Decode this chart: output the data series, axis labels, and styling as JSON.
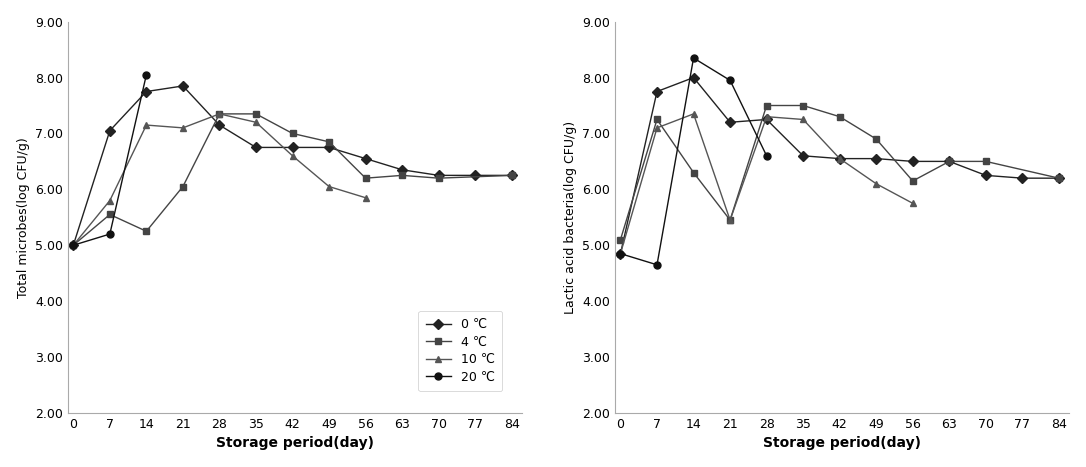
{
  "x_ticks": [
    0,
    7,
    14,
    21,
    28,
    35,
    42,
    49,
    56,
    63,
    70,
    77,
    84
  ],
  "ylim": [
    2.0,
    9.0
  ],
  "yticks": [
    2.0,
    3.0,
    4.0,
    5.0,
    6.0,
    7.0,
    8.0,
    9.0
  ],
  "xlabel": "Storage period(day)",
  "ylabel_left": "Total microbes(log CFU/g)",
  "ylabel_right": "Lactic acid bacteria(log CFU/g)",
  "left_series": {
    "0C": {
      "x": [
        0,
        7,
        14,
        21,
        28,
        35,
        42,
        49,
        56,
        63,
        70,
        77,
        84
      ],
      "y": [
        5.0,
        7.05,
        7.75,
        7.85,
        7.15,
        6.75,
        6.75,
        6.75,
        6.55,
        6.35,
        6.25,
        6.25,
        6.25
      ],
      "marker": "D",
      "color": "#222222"
    },
    "4C": {
      "x": [
        0,
        7,
        14,
        21,
        28,
        35,
        42,
        49,
        56,
        63,
        70,
        84
      ],
      "y": [
        5.0,
        5.55,
        5.25,
        6.05,
        7.35,
        7.35,
        7.0,
        6.85,
        6.2,
        6.25,
        6.2,
        6.25
      ],
      "marker": "s",
      "color": "#444444"
    },
    "10C": {
      "x": [
        0,
        7,
        14,
        21,
        28,
        35,
        42,
        49,
        56
      ],
      "y": [
        5.0,
        5.8,
        7.15,
        7.1,
        7.35,
        7.2,
        6.6,
        6.05,
        5.85
      ],
      "marker": "^",
      "color": "#555555"
    },
    "20C": {
      "x": [
        0,
        7,
        14
      ],
      "y": [
        5.0,
        5.2,
        8.05
      ],
      "marker": "o",
      "color": "#111111"
    }
  },
  "right_series": {
    "0C": {
      "x": [
        0,
        7,
        14,
        21,
        28,
        35,
        42,
        49,
        56,
        63,
        70,
        77,
        84
      ],
      "y": [
        4.85,
        7.75,
        8.0,
        7.2,
        7.25,
        6.6,
        6.55,
        6.55,
        6.5,
        6.5,
        6.25,
        6.2,
        6.2
      ],
      "marker": "D",
      "color": "#222222"
    },
    "4C": {
      "x": [
        0,
        7,
        14,
        21,
        28,
        35,
        42,
        49,
        56,
        63,
        70,
        84
      ],
      "y": [
        5.1,
        7.25,
        6.3,
        5.45,
        7.5,
        7.5,
        7.3,
        6.9,
        6.15,
        6.5,
        6.5,
        6.2
      ],
      "marker": "s",
      "color": "#444444"
    },
    "10C": {
      "x": [
        0,
        7,
        14,
        21,
        28,
        35,
        42,
        49,
        56
      ],
      "y": [
        4.85,
        7.1,
        7.35,
        5.45,
        7.3,
        7.25,
        6.55,
        6.1,
        5.75
      ],
      "marker": "^",
      "color": "#555555"
    },
    "20C": {
      "x": [
        0,
        7,
        14,
        21,
        28
      ],
      "y": [
        4.85,
        4.65,
        8.35,
        7.95,
        6.6
      ],
      "marker": "o",
      "color": "#111111"
    }
  },
  "legend_labels": [
    "0 ℃",
    "4 ℃",
    "10 ℃",
    "20 ℃"
  ],
  "legend_markers": [
    "D",
    "s",
    "^",
    "o"
  ],
  "legend_colors": [
    "#222222",
    "#444444",
    "#555555",
    "#111111"
  ],
  "line_color": "#444444",
  "background_color": "#ffffff",
  "figsize": [
    10.86,
    4.67
  ],
  "dpi": 100
}
